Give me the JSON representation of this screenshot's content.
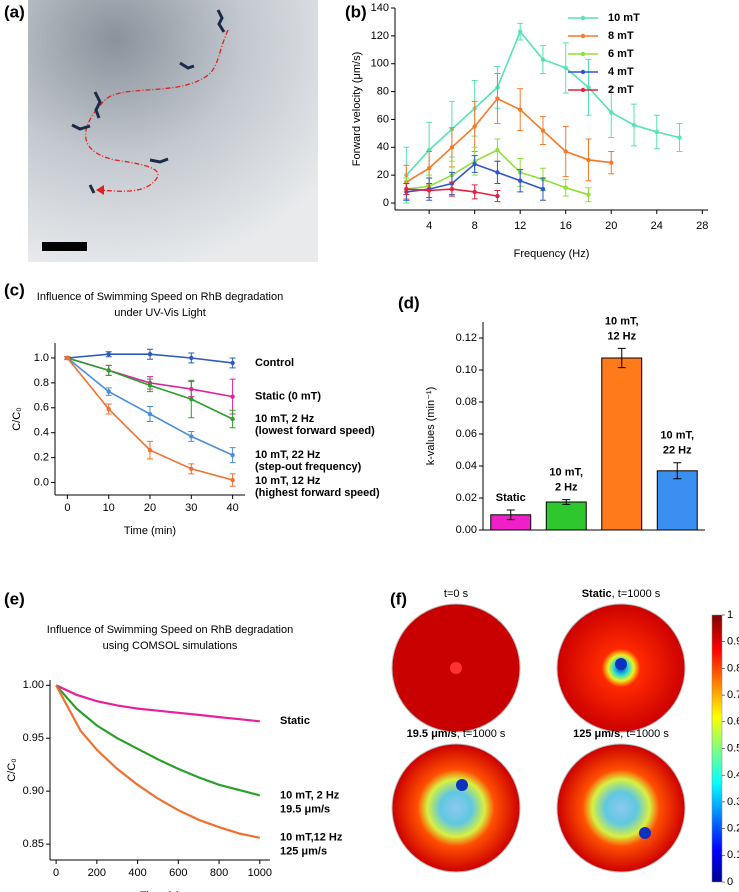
{
  "panel_labels": [
    "(a)",
    "(b)",
    "(c)",
    "(d)",
    "(e)",
    "(f)"
  ],
  "chart_data": [
    {
      "type": "line",
      "xlabel": "Frequency (Hz)",
      "ylabel": "Forward velocity (μm/s)",
      "xlim": [
        1,
        28.5
      ],
      "xticks": [
        4,
        8,
        12,
        16,
        20,
        24,
        28
      ],
      "ylim": [
        -5,
        140
      ],
      "yticks": [
        0,
        20,
        40,
        60,
        80,
        100,
        120,
        140
      ],
      "legend": "upper right",
      "markers": true,
      "series": [
        {
          "name": "10 mT",
          "color": "#55e3b3",
          "x": [
            2,
            4,
            6,
            8,
            10,
            12,
            14,
            16,
            18,
            20,
            22,
            24,
            26
          ],
          "values": [
            20,
            38,
            53,
            68,
            83,
            123,
            103,
            97,
            83,
            65,
            56,
            51,
            47
          ],
          "errors": [
            20,
            20,
            20,
            20,
            15,
            6,
            10,
            18,
            20,
            18,
            15,
            12,
            10
          ]
        },
        {
          "name": "8 mT",
          "color": "#f47a2a",
          "x": [
            2,
            4,
            6,
            8,
            10,
            12,
            14,
            16,
            18,
            20
          ],
          "values": [
            15,
            25,
            40,
            55,
            75,
            67,
            52,
            37,
            31,
            29
          ],
          "errors": [
            12,
            12,
            14,
            18,
            18,
            15,
            10,
            18,
            15,
            8
          ]
        },
        {
          "name": "6 mT",
          "color": "#8fe03a",
          "x": [
            2,
            4,
            6,
            8,
            10,
            12,
            14,
            16,
            18
          ],
          "values": [
            10,
            12,
            20,
            30,
            38,
            22,
            17,
            11,
            6
          ],
          "errors": [
            8,
            8,
            10,
            10,
            8,
            10,
            8,
            6,
            5
          ]
        },
        {
          "name": "4 mT",
          "color": "#2f56d0",
          "x": [
            2,
            4,
            6,
            8,
            10,
            12,
            14
          ],
          "values": [
            8,
            10,
            14,
            28,
            22,
            16,
            10
          ],
          "errors": [
            6,
            8,
            8,
            6,
            8,
            8,
            8
          ]
        },
        {
          "name": "2 mT",
          "color": "#e8213f",
          "x": [
            2,
            4,
            6,
            8,
            10
          ],
          "values": [
            10,
            9,
            10,
            8,
            5
          ],
          "errors": [
            4,
            5,
            5,
            5,
            4
          ]
        }
      ]
    },
    {
      "type": "line",
      "title": [
        "Influence of Swimming Speed on RhB degradation",
        "under UV-Vis Light"
      ],
      "xlabel": "Time (min)",
      "ylabel": "C/C₀",
      "xlim": [
        -3,
        43
      ],
      "xticks": [
        0,
        10,
        20,
        30,
        40
      ],
      "ylim": [
        -0.1,
        1.12
      ],
      "yticks": [
        {
          "value": 0,
          "label": "0.0"
        },
        0.2,
        0.4,
        0.6,
        0.8,
        {
          "value": 1,
          "label": "1.0"
        }
      ],
      "end_labels": true,
      "markers": true,
      "series": [
        {
          "name": "Control",
          "color": "#2e5cb8",
          "x": [
            0,
            10,
            20,
            30,
            40
          ],
          "values": [
            1,
            1.03,
            1.03,
            1.0,
            0.96
          ],
          "errors": [
            0.01,
            0.02,
            0.04,
            0.04,
            0.04
          ]
        },
        {
          "name": "Static (0 mT)",
          "color": "#e0209a",
          "x": [
            0,
            10,
            20,
            30,
            40
          ],
          "values": [
            1,
            0.9,
            0.8,
            0.75,
            0.69
          ],
          "errors": [
            0.01,
            0.04,
            0.05,
            0.06,
            0.14
          ]
        },
        {
          "name": "10 mT, 2 Hz",
          "note": "(lowest forward speed)",
          "color": "#2aa02a",
          "x": [
            0,
            10,
            20,
            30,
            40
          ],
          "values": [
            1,
            0.9,
            0.78,
            0.67,
            0.51
          ],
          "errors": [
            0.01,
            0.04,
            0.05,
            0.15,
            0.07
          ]
        },
        {
          "name": "10 mT, 22 Hz",
          "note": "(step-out frequency)",
          "color": "#4a8fd9",
          "x": [
            0,
            10,
            20,
            30,
            40
          ],
          "values": [
            1,
            0.73,
            0.55,
            0.37,
            0.22
          ],
          "errors": [
            0.01,
            0.03,
            0.06,
            0.04,
            0.06
          ]
        },
        {
          "name": "10 mT, 12 Hz",
          "note": "(highest forward speed)",
          "color": "#f07030",
          "x": [
            0,
            10,
            20,
            30,
            40
          ],
          "values": [
            1,
            0.59,
            0.26,
            0.11,
            0.02
          ],
          "errors": [
            0.01,
            0.04,
            0.07,
            0.04,
            0.05
          ]
        }
      ]
    },
    {
      "type": "bar",
      "ylabel": "k-values (min⁻¹)",
      "categories": [
        [
          "Static"
        ],
        [
          "10 mT,",
          "2 Hz"
        ],
        [
          "10 mT,",
          "12 Hz"
        ],
        [
          "10 mT,",
          "22 Hz"
        ]
      ],
      "values": [
        0.0095,
        0.0175,
        0.1075,
        0.037
      ],
      "errors": [
        0.003,
        0.0015,
        0.006,
        0.005
      ],
      "colors": [
        "#f020c8",
        "#2ec82e",
        "#ff7a1a",
        "#3a8ff0"
      ],
      "ylim": [
        0,
        0.13
      ],
      "yticks": [
        {
          "value": 0,
          "label": "0.00"
        },
        0.02,
        0.04,
        0.06,
        0.08,
        {
          "value": 0.1,
          "label": "0.10"
        },
        0.12
      ]
    },
    {
      "type": "line",
      "title": [
        "Influence of Swimming Speed on RhB degradation",
        "using COMSOL simulations"
      ],
      "xlabel": "Time (s)",
      "ylabel": "C/C₀",
      "xlim": [
        -30,
        1050
      ],
      "xticks": [
        0,
        200,
        400,
        600,
        800,
        1000
      ],
      "ylim": [
        0.835,
        1.005
      ],
      "yticks": [
        0.85,
        {
          "value": 0.9,
          "label": "0.90"
        },
        0.95,
        {
          "value": 1,
          "label": "1.00"
        }
      ],
      "end_labels": true,
      "markers": false,
      "series": [
        {
          "name": "Static",
          "color": "#e8209a",
          "x": [
            0,
            100,
            200,
            300,
            400,
            500,
            600,
            700,
            800,
            900,
            1000
          ],
          "values": [
            1,
            0.991,
            0.985,
            0.981,
            0.978,
            0.976,
            0.974,
            0.972,
            0.97,
            0.968,
            0.966
          ]
        },
        {
          "name": "10 mT, 2 Hz",
          "note": "19.5 μm/s",
          "color": "#2aa02a",
          "x": [
            0,
            100,
            200,
            300,
            400,
            500,
            600,
            700,
            800,
            900,
            1000
          ],
          "values": [
            1,
            0.978,
            0.962,
            0.95,
            0.94,
            0.93,
            0.921,
            0.913,
            0.906,
            0.901,
            0.896
          ]
        },
        {
          "name": "10 mT,12 Hz",
          "note": "125 μm/s",
          "color": "#f07030",
          "x": [
            0,
            120,
            200,
            300,
            400,
            500,
            600,
            700,
            800,
            900,
            1000
          ],
          "values": [
            1,
            0.957,
            0.939,
            0.921,
            0.906,
            0.893,
            0.882,
            0.873,
            0.866,
            0.86,
            0.856
          ]
        }
      ]
    }
  ],
  "simulation": {
    "titles": [
      {
        "text": "t=0 s"
      },
      {
        "bold": "Static",
        "text": ", t=1000 s"
      },
      {
        "bold": "19.5 μm/s",
        "text": ", t=1000 s"
      },
      {
        "bold": "125 μm/s",
        "text": ", t=1000 s"
      }
    ],
    "colorbar": {
      "range": [
        0,
        1
      ],
      "ticks": [
        0,
        0.1,
        0.2,
        0.3,
        0.4,
        0.5,
        0.6,
        0.7,
        0.8,
        0.9,
        1
      ]
    }
  }
}
